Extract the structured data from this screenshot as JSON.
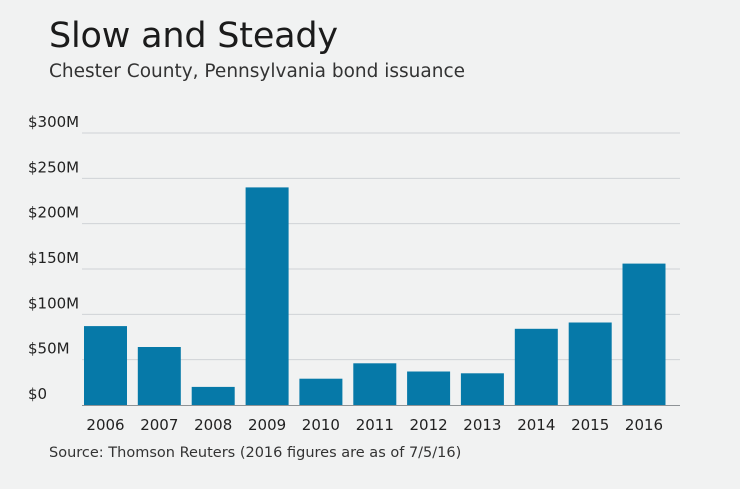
{
  "header": {
    "title": "Slow and Steady",
    "subtitle": "Chester County, Pennsylvania bond issuance"
  },
  "footer": {
    "source": "Source: Thomson Reuters (2016 figures are as of 7/5/16)"
  },
  "colors": {
    "bar": "#0679a8",
    "grid": "#cfd3d6",
    "axis": "#8e9396",
    "background": "#f1f2f2"
  },
  "chart_data": {
    "type": "bar",
    "title": "Slow and Steady",
    "subtitle": "Chester County, Pennsylvania bond issuance",
    "xlabel": "",
    "ylabel": "",
    "categories": [
      "2006",
      "2007",
      "2008",
      "2009",
      "2010",
      "2011",
      "2012",
      "2013",
      "2014",
      "2015",
      "2016"
    ],
    "series": [
      {
        "values": [
          87,
          64,
          20,
          240,
          29,
          46,
          37,
          35,
          84,
          91,
          156
        ]
      }
    ],
    "ylim": [
      0,
      300
    ],
    "yticks": [
      0,
      50,
      100,
      150,
      200,
      250,
      300
    ],
    "ytick_labels": [
      "$0",
      "$50M",
      "$100M",
      "$150M",
      "$200M",
      "$250M",
      "$300M"
    ],
    "grid": true,
    "legend": "none"
  }
}
